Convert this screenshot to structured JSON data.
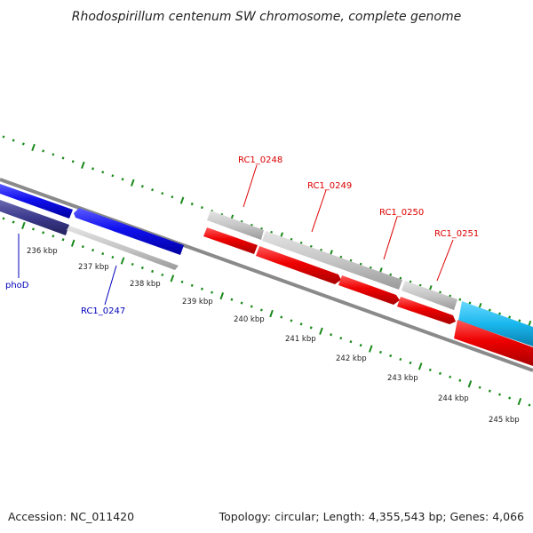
{
  "title": "Rhodospirillum centenum SW chromosome, complete genome",
  "footer": {
    "accession": "Accession: NC_011420",
    "topology": "Topology: circular; Length: 4,355,543 bp; Genes: 4,066"
  },
  "colors": {
    "tick": "#1a8a1a",
    "backbone": "#8a8a8a",
    "gene_red": "#ee0000",
    "gene_blue": "#1010ee",
    "gene_navy": "#3c3a8c",
    "gene_gray": "#c4c4c4",
    "gene_cyan": "#1ab8ee",
    "label_red": "#dd0000",
    "label_blue": "#0000bb"
  },
  "scale": {
    "unit": "kbp",
    "labels": [
      "236 kbp",
      "237 kbp",
      "238 kbp",
      "239 kbp",
      "240 kbp",
      "241 kbp",
      "242 kbp",
      "243 kbp",
      "244 kbp",
      "245 kbp"
    ]
  },
  "gene_labels": [
    {
      "text": "phoD",
      "color": "blue"
    },
    {
      "text": "RC1_0247",
      "color": "blue"
    },
    {
      "text": "RC1_0248",
      "color": "red"
    },
    {
      "text": "RC1_0249",
      "color": "red"
    },
    {
      "text": "RC1_0250",
      "color": "red"
    },
    {
      "text": "RC1_0251",
      "color": "red"
    }
  ]
}
